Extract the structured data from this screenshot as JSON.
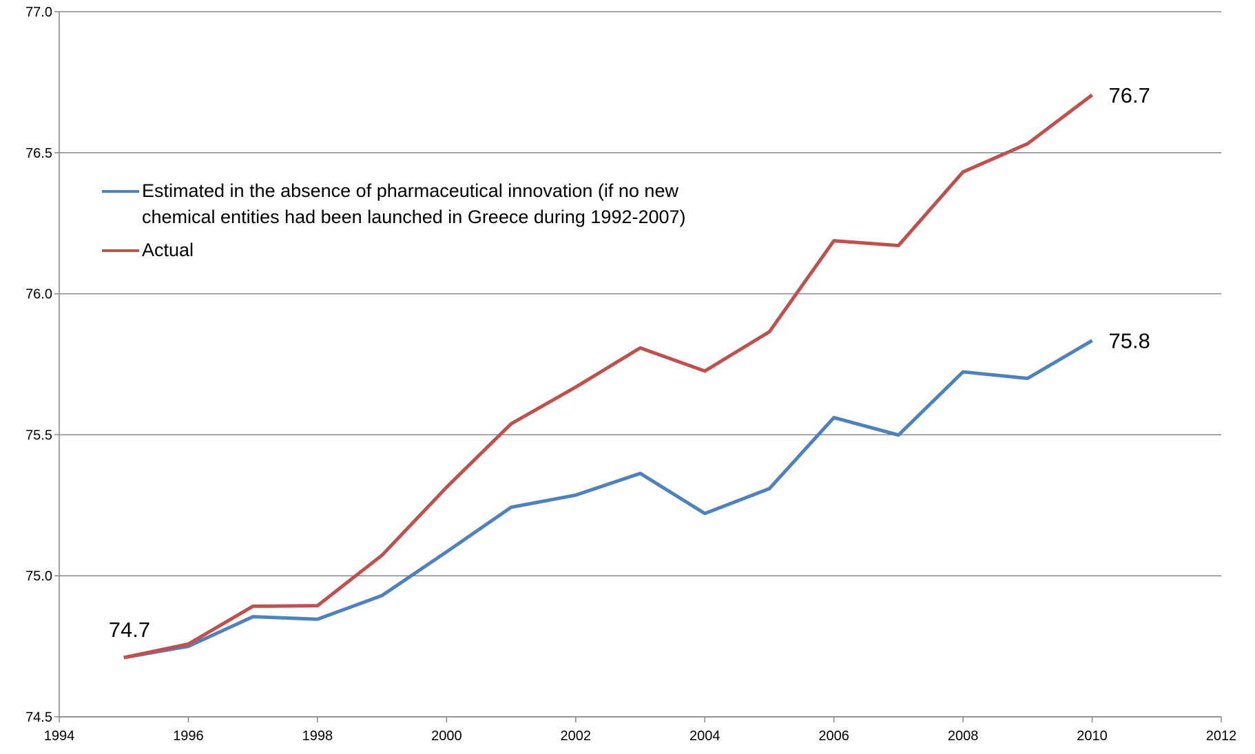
{
  "chart_data": {
    "type": "line",
    "x": [
      1995,
      1996,
      1997,
      1998,
      1999,
      2000,
      2001,
      2002,
      2003,
      2004,
      2005,
      2006,
      2007,
      2008,
      2009,
      2010
    ],
    "series": [
      {
        "name": "Estimated in the absence of  pharmaceutical innovation (if no new chemical entities had been launched in Greece during 1992-2007)",
        "color": "#4f81bd",
        "values": [
          74.71,
          74.75,
          74.855,
          74.846,
          74.93,
          75.085,
          75.243,
          75.286,
          75.363,
          75.221,
          75.309,
          75.561,
          75.499,
          75.723,
          75.7,
          75.834
        ],
        "value_labels": [
          "74.7",
          null,
          null,
          null,
          null,
          null,
          null,
          null,
          null,
          null,
          null,
          null,
          null,
          null,
          null,
          "75.8"
        ]
      },
      {
        "name": "Actual",
        "color": "#c0504d",
        "values": [
          74.71,
          74.758,
          74.892,
          74.894,
          75.073,
          75.314,
          75.539,
          75.669,
          75.808,
          75.726,
          75.865,
          76.188,
          76.171,
          76.432,
          76.532,
          76.705
        ],
        "value_labels": [
          null,
          null,
          null,
          null,
          null,
          null,
          null,
          null,
          null,
          null,
          null,
          null,
          null,
          null,
          null,
          "76.7"
        ]
      }
    ],
    "xlim": [
      1994,
      2012
    ],
    "xticks": [
      1994,
      1996,
      1998,
      2000,
      2002,
      2004,
      2006,
      2008,
      2010,
      2012
    ],
    "ylim": [
      74.5,
      77.0
    ],
    "yticks": [
      74.5,
      {
        "value": 75,
        "label": "75.0"
      },
      75.5,
      {
        "value": 76,
        "label": "76.0"
      },
      76.5,
      {
        "value": 77,
        "label": "77.0"
      }
    ],
    "grid": true,
    "legend": "upper left"
  }
}
